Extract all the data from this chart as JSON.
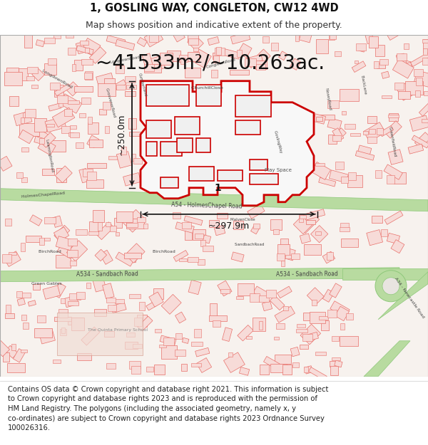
{
  "title_line1": "1, GOSLING WAY, CONGLETON, CW12 4WD",
  "title_line2": "Map shows position and indicative extent of the property.",
  "area_text": "~41533m²/~10.263ac.",
  "dim_vertical": "~250.0m",
  "dim_horizontal": "~297.9m",
  "property_label": "1",
  "footer_text": "Contains OS data © Crown copyright and database right 2021. This information is subject to Crown copyright and database rights 2023 and is reproduced with the permission of HM Land Registry. The polygons (including the associated geometry, namely x, y co-ordinates) are subject to Crown copyright and database rights 2023 Ordnance Survey 100026316.",
  "map_bg": "#f7f2ee",
  "building_fill": "#f7dbd8",
  "building_stroke": "#e8706a",
  "road_green_fill": "#b8dba0",
  "road_green_stroke": "#8ec87a",
  "road_white_fill": "#ffffff",
  "road_gray_fill": "#eeeeee",
  "prop_stroke": "#cc0000",
  "prop_fill": "#ffffff",
  "prop_inner_fill": "#f0f0f0",
  "dim_color": "#111111",
  "label_color": "#444444",
  "title_color": "#111111",
  "footer_color": "#222222",
  "area_color": "#111111",
  "title_fontsize": 10.5,
  "subtitle_fontsize": 9,
  "area_fontsize": 20,
  "dim_fontsize": 9,
  "label_fontsize": 5.5,
  "footer_fontsize": 7.2,
  "fig_width": 6.0,
  "fig_height": 6.25,
  "dpi": 100
}
